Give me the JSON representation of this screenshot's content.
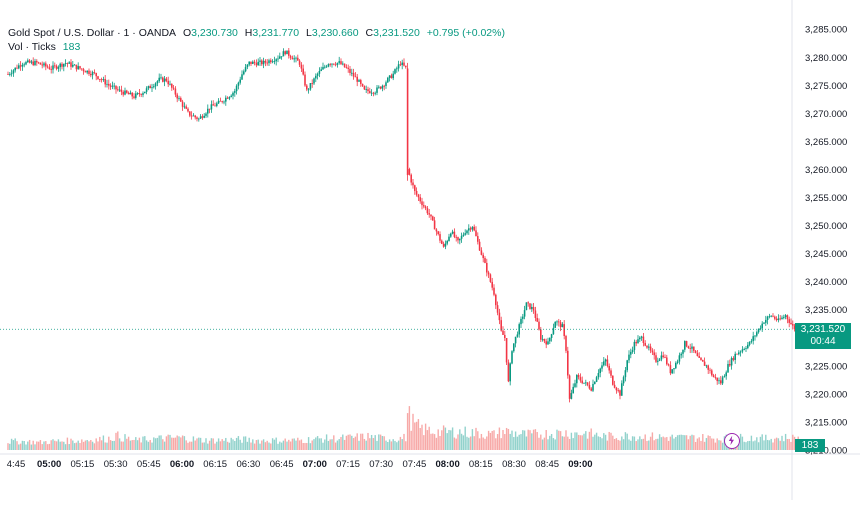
{
  "legend": {
    "symbol": "Gold Spot / U.S. Dollar · 1 · OANDA",
    "open_label": "O",
    "open": "3,230.730",
    "high_label": "H",
    "high": "3,231.770",
    "low_label": "L",
    "low": "3,230.660",
    "close_label": "C",
    "close": "3,231.520",
    "change": "+0.795 (+0.02%)",
    "vol_label": "Vol · Ticks",
    "vol": "183"
  },
  "price_tag": {
    "price": "3,231.520",
    "countdown": "00:44"
  },
  "volume_tag": "183",
  "colors": {
    "up": "#089981",
    "down": "#f23645",
    "up_vol": "#92d2cc",
    "down_vol": "#f7a9a7",
    "current_line": "#089981",
    "alert_button": "#9c27b0"
  },
  "icons": {
    "alert_button": "lightning-icon"
  },
  "chart_data": {
    "type": "candlestick",
    "title": "Gold Spot / U.S. Dollar",
    "interval": "1",
    "source": "OANDA",
    "y_range": [
      3210,
      3287
    ],
    "y_ticks": [
      "3,285.000",
      "3,280.000",
      "3,275.000",
      "3,270.000",
      "3,265.000",
      "3,260.000",
      "3,255.000",
      "3,250.000",
      "3,245.000",
      "3,240.000",
      "3,235.000",
      "3,230.000",
      "3,225.000",
      "3,220.000",
      "3,215.000",
      "3,210.000"
    ],
    "x_ticks": [
      "4:45",
      "05:00",
      "05:15",
      "05:30",
      "05:45",
      "06:00",
      "06:15",
      "06:30",
      "06:45",
      "07:00",
      "07:15",
      "07:30",
      "07:45",
      "08:00",
      "08:15",
      "08:30",
      "08:45",
      "09:00"
    ],
    "x_ticks_bold": [
      "05:00",
      "06:00",
      "07:00",
      "08:00",
      "09:00"
    ],
    "close_path": [
      [
        0,
        3277
      ],
      [
        8,
        3279
      ],
      [
        16,
        3279
      ],
      [
        24,
        3278
      ],
      [
        32,
        3279
      ],
      [
        40,
        3278
      ],
      [
        48,
        3277
      ],
      [
        56,
        3275
      ],
      [
        62,
        3274
      ],
      [
        70,
        3273
      ],
      [
        76,
        3274
      ],
      [
        84,
        3276
      ],
      [
        88,
        3276
      ],
      [
        96,
        3272
      ],
      [
        100,
        3270
      ],
      [
        106,
        3269
      ],
      [
        112,
        3271
      ],
      [
        118,
        3272
      ],
      [
        126,
        3274
      ],
      [
        130,
        3277
      ],
      [
        134,
        3279
      ],
      [
        142,
        3279
      ],
      [
        150,
        3280
      ],
      [
        154,
        3281
      ],
      [
        158,
        3280
      ],
      [
        162,
        3279
      ],
      [
        166,
        3274
      ],
      [
        172,
        3277
      ],
      [
        178,
        3279
      ],
      [
        184,
        3279
      ],
      [
        188,
        3278
      ],
      [
        194,
        3276
      ],
      [
        198,
        3274
      ],
      [
        204,
        3274
      ],
      [
        208,
        3275
      ],
      [
        214,
        3277
      ],
      [
        218,
        3279
      ],
      [
        221,
        3278
      ],
      [
        222,
        3260
      ],
      [
        226,
        3256
      ],
      [
        230,
        3254
      ],
      [
        234,
        3252
      ],
      [
        238,
        3249
      ],
      [
        242,
        3246
      ],
      [
        246,
        3249
      ],
      [
        250,
        3247
      ],
      [
        254,
        3249
      ],
      [
        258,
        3250
      ],
      [
        262,
        3246
      ],
      [
        266,
        3242
      ],
      [
        270,
        3238
      ],
      [
        274,
        3231
      ],
      [
        276,
        3230
      ],
      [
        278,
        3222
      ],
      [
        280,
        3228
      ],
      [
        284,
        3232
      ],
      [
        288,
        3236
      ],
      [
        292,
        3235
      ],
      [
        296,
        3230
      ],
      [
        300,
        3229
      ],
      [
        304,
        3233
      ],
      [
        308,
        3232
      ],
      [
        310,
        3228
      ],
      [
        312,
        3219
      ],
      [
        316,
        3223
      ],
      [
        320,
        3222
      ],
      [
        324,
        3221
      ],
      [
        328,
        3224
      ],
      [
        332,
        3226
      ],
      [
        336,
        3222
      ],
      [
        340,
        3220
      ],
      [
        344,
        3226
      ],
      [
        348,
        3229
      ],
      [
        352,
        3230
      ],
      [
        356,
        3228
      ],
      [
        360,
        3226
      ],
      [
        364,
        3227
      ],
      [
        368,
        3224
      ],
      [
        372,
        3226
      ],
      [
        376,
        3229
      ],
      [
        380,
        3228
      ],
      [
        384,
        3226
      ],
      [
        388,
        3225
      ],
      [
        392,
        3223
      ],
      [
        396,
        3222
      ],
      [
        400,
        3225
      ],
      [
        404,
        3227
      ],
      [
        408,
        3228
      ],
      [
        412,
        3229
      ],
      [
        416,
        3231
      ],
      [
        420,
        3233
      ],
      [
        424,
        3234
      ],
      [
        428,
        3233
      ],
      [
        432,
        3234
      ],
      [
        436,
        3232
      ],
      [
        440,
        3231
      ]
    ],
    "volume_profile": [
      [
        0,
        9
      ],
      [
        8,
        9
      ],
      [
        18,
        8
      ],
      [
        24,
        9
      ],
      [
        40,
        10
      ],
      [
        56,
        12
      ],
      [
        60,
        15
      ],
      [
        70,
        10
      ],
      [
        84,
        12
      ],
      [
        96,
        13
      ],
      [
        104,
        11
      ],
      [
        112,
        10
      ],
      [
        130,
        11
      ],
      [
        140,
        10
      ],
      [
        160,
        10
      ],
      [
        168,
        11
      ],
      [
        176,
        12
      ],
      [
        184,
        12
      ],
      [
        192,
        13
      ],
      [
        200,
        14
      ],
      [
        208,
        12
      ],
      [
        216,
        12
      ],
      [
        221,
        13
      ],
      [
        222,
        38
      ],
      [
        226,
        26
      ],
      [
        230,
        22
      ],
      [
        238,
        19
      ],
      [
        250,
        19
      ],
      [
        260,
        18
      ],
      [
        270,
        16
      ],
      [
        276,
        20
      ],
      [
        280,
        18
      ],
      [
        288,
        16
      ],
      [
        300,
        17
      ],
      [
        310,
        18
      ],
      [
        316,
        17
      ],
      [
        320,
        18
      ],
      [
        332,
        14
      ],
      [
        344,
        15
      ],
      [
        356,
        14
      ],
      [
        370,
        13
      ],
      [
        384,
        13
      ],
      [
        396,
        12
      ],
      [
        410,
        13
      ],
      [
        420,
        12
      ],
      [
        432,
        13
      ],
      [
        440,
        12
      ]
    ],
    "x_range": [
      0,
      486
    ],
    "last_close": 3231.52,
    "last_volume": 183
  }
}
